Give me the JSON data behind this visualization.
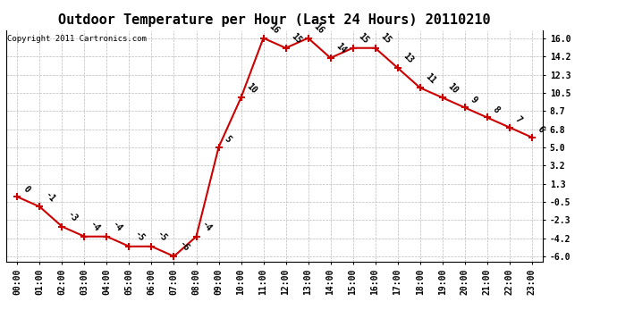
{
  "title": "Outdoor Temperature per Hour (Last 24 Hours) 20110210",
  "copyright": "Copyright 2011 Cartronics.com",
  "hours": [
    "00:00",
    "01:00",
    "02:00",
    "03:00",
    "04:00",
    "05:00",
    "06:00",
    "07:00",
    "08:00",
    "09:00",
    "10:00",
    "11:00",
    "12:00",
    "13:00",
    "14:00",
    "15:00",
    "16:00",
    "17:00",
    "18:00",
    "19:00",
    "20:00",
    "21:00",
    "22:00",
    "23:00"
  ],
  "temps": [
    0,
    -1,
    -3,
    -4,
    -4,
    -5,
    -5,
    -6,
    -4,
    5,
    10,
    16,
    15,
    16,
    14,
    15,
    15,
    13,
    11,
    10,
    9,
    8,
    7,
    6
  ],
  "line_color": "#cc0000",
  "marker_color": "#cc0000",
  "bg_color": "#ffffff",
  "grid_color": "#bbbbbb",
  "yticks": [
    -6.0,
    -4.2,
    -2.3,
    -0.5,
    1.3,
    3.2,
    5.0,
    6.8,
    8.7,
    10.5,
    12.3,
    14.2,
    16.0
  ],
  "ylim": [
    -6.5,
    16.8
  ],
  "title_fontsize": 11,
  "label_fontsize": 7,
  "annotation_fontsize": 7,
  "copyright_fontsize": 6.5
}
